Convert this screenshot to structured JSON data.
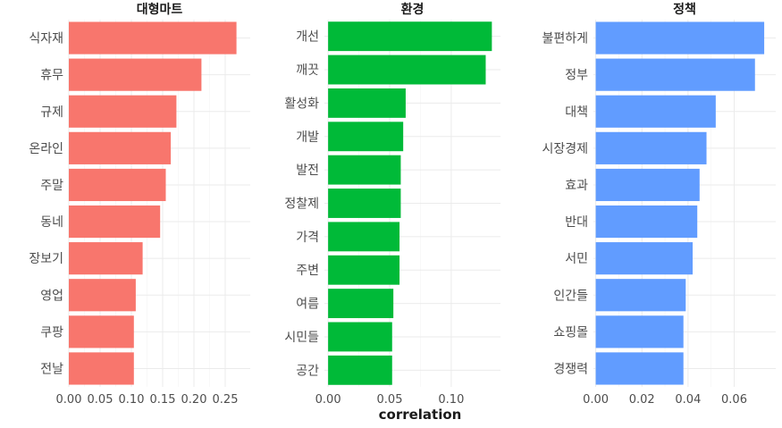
{
  "chart_data": {
    "type": "bar",
    "orientation": "horizontal",
    "xlabel": "correlation",
    "grid": true,
    "panels": [
      {
        "title": "대형마트",
        "color": "#F8766D",
        "categories": [
          "식자재",
          "휴무",
          "규제",
          "온라인",
          "주말",
          "동네",
          "장보기",
          "영업",
          "쿠팡",
          "전날"
        ],
        "values": [
          0.268,
          0.212,
          0.172,
          0.163,
          0.155,
          0.146,
          0.118,
          0.107,
          0.104,
          0.104
        ],
        "xlim": [
          0,
          0.29
        ],
        "xticks": [
          0,
          0.05,
          0.1,
          0.15,
          0.2,
          0.25
        ],
        "xtick_labels": [
          "0.00",
          "0.05",
          "0.10",
          "0.15",
          "0.20",
          "0.25"
        ]
      },
      {
        "title": "환경",
        "color": "#00BA38",
        "categories": [
          "개선",
          "깨끗",
          "활성화",
          "개발",
          "발전",
          "정찰제",
          "가격",
          "주변",
          "여름",
          "시민들",
          "공간"
        ],
        "values": [
          0.133,
          0.128,
          0.063,
          0.061,
          0.059,
          0.059,
          0.058,
          0.058,
          0.053,
          0.052,
          0.052
        ],
        "xlim": [
          -0.003,
          0.14
        ],
        "xticks": [
          0,
          0.05,
          0.1
        ],
        "xtick_labels": [
          "0.00",
          "0.05",
          "0.10"
        ]
      },
      {
        "title": "정책",
        "color": "#619CFF",
        "categories": [
          "불편하게",
          "정부",
          "대책",
          "시장경제",
          "효과",
          "반대",
          "서민",
          "인간들",
          "쇼핑몰",
          "경쟁력"
        ],
        "values": [
          0.073,
          0.069,
          0.052,
          0.048,
          0.045,
          0.044,
          0.042,
          0.039,
          0.038,
          0.038
        ],
        "xlim": [
          -0.001,
          0.078
        ],
        "xticks": [
          0,
          0.02,
          0.04,
          0.06
        ],
        "xtick_labels": [
          "0.00",
          "0.02",
          "0.04",
          "0.06"
        ]
      }
    ]
  }
}
